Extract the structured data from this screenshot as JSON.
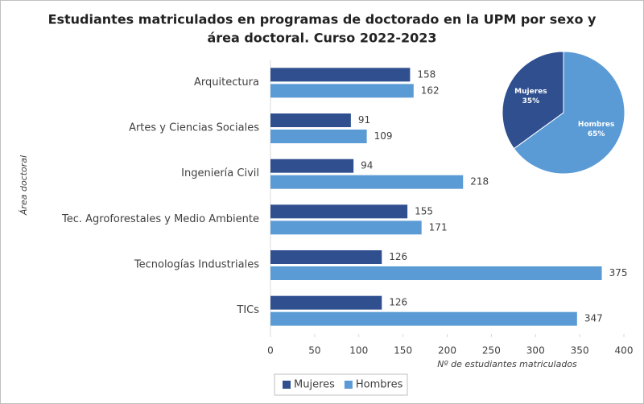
{
  "chart_data": [
    {
      "type": "hbar",
      "title": [
        "Estudiantes matriculados  en programas de doctorado  en la UPM por sexo y",
        "área doctoral. Curso 2022-2023"
      ],
      "categories": [
        "Arquitectura",
        "Artes y Ciencias Sociales",
        "Ingeniería Civil",
        "Tec. Agroforestales y Medio Ambiente",
        "Tecnologías Industriales",
        "TICs"
      ],
      "series": [
        {
          "name": "Mujeres",
          "color": "#2f4f8f",
          "values": [
            158,
            91,
            94,
            155,
            126,
            126
          ]
        },
        {
          "name": "Hombres",
          "color": "#5b9bd5",
          "values": [
            162,
            109,
            218,
            171,
            375,
            347
          ]
        }
      ],
      "xlim": [
        0,
        400
      ],
      "xticks": [
        0,
        50,
        100,
        150,
        200,
        250,
        300,
        350,
        400
      ],
      "xlabel": "Nº de estudiantes matriculados",
      "ylabel": "Área doctoral",
      "legend": "bottom"
    },
    {
      "type": "pie",
      "categories": [
        "Mujeres",
        "Hombres"
      ],
      "values": [
        35,
        65
      ],
      "value_labels": [
        "35%",
        "65%"
      ],
      "colors": [
        "#2f4f8f",
        "#5b9bd5"
      ]
    }
  ]
}
